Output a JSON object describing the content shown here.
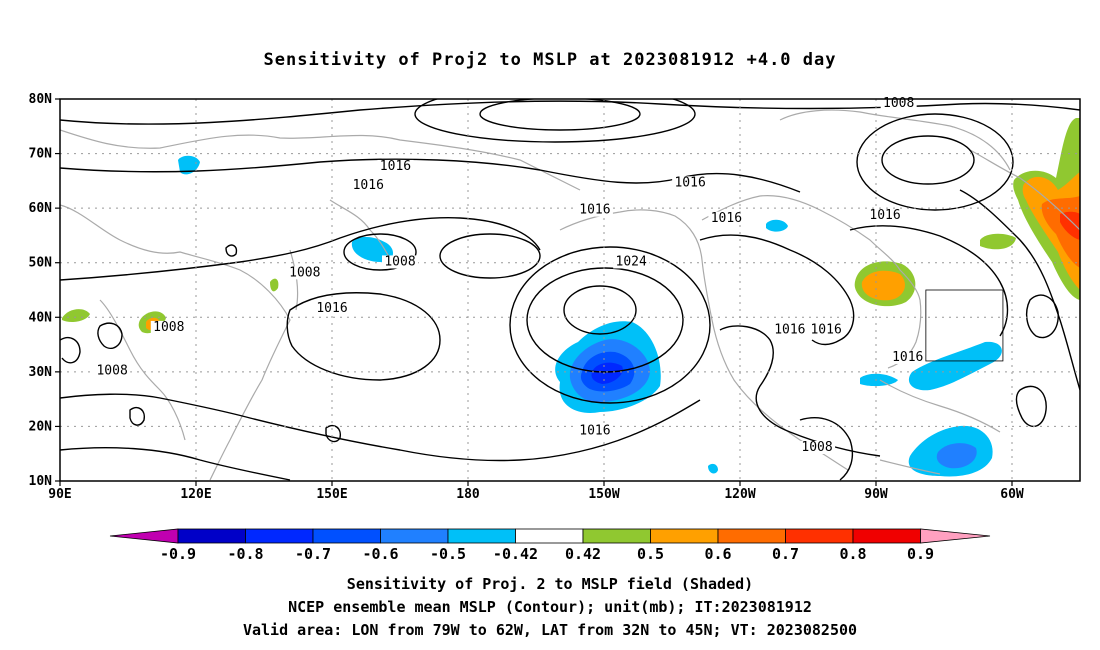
{
  "title": "Sensitivity of Proj2 to MSLP at 2023081912 +4.0 day",
  "map": {
    "lon_ticks": [
      "90E",
      "120E",
      "150E",
      "180",
      "150W",
      "120W",
      "90W",
      "60W"
    ],
    "lat_ticks": [
      "80N",
      "70N",
      "60N",
      "50N",
      "40N",
      "30N",
      "20N",
      "10N"
    ]
  },
  "contour_labels": [
    {
      "text": "1016",
      "lon": 164,
      "lat": 67
    },
    {
      "text": "1016",
      "lon": 158,
      "lat": 63.5
    },
    {
      "text": "1016",
      "lon": -131,
      "lat": 64
    },
    {
      "text": "1016",
      "lon": -152,
      "lat": 59
    },
    {
      "text": "1016",
      "lon": -123,
      "lat": 57.5
    },
    {
      "text": "1008",
      "lon": -85,
      "lat": 78.5
    },
    {
      "text": "1016",
      "lon": -88,
      "lat": 58
    },
    {
      "text": "1008",
      "lon": 144,
      "lat": 47.5
    },
    {
      "text": "1008",
      "lon": 165,
      "lat": 49.5
    },
    {
      "text": "1024",
      "lon": -144,
      "lat": 49.5
    },
    {
      "text": "1016",
      "lon": 150,
      "lat": 41
    },
    {
      "text": "1008",
      "lon": 114,
      "lat": 37.5
    },
    {
      "text": "1008",
      "lon": 101.5,
      "lat": 29.5
    },
    {
      "text": "1016",
      "lon": -109,
      "lat": 37
    },
    {
      "text": "1016",
      "lon": -101,
      "lat": 37
    },
    {
      "text": "1016",
      "lon": -83,
      "lat": 32
    },
    {
      "text": "1016",
      "lon": -152,
      "lat": 18.5
    },
    {
      "text": "1008",
      "lon": -103,
      "lat": 15.5
    }
  ],
  "valid_box": {
    "lon_min": -79,
    "lon_max": -62,
    "lat_min": 32,
    "lat_max": 45
  },
  "colorbar": {
    "labels": [
      "-0.9",
      "-0.8",
      "-0.7",
      "-0.6",
      "-0.5",
      "-0.42",
      "0.42",
      "0.5",
      "0.6",
      "0.7",
      "0.8",
      "0.9"
    ],
    "colors": [
      "#c000b0",
      "#0000c8",
      "#0028ff",
      "#0050ff",
      "#2080ff",
      "#00c0f8",
      "#ffffff",
      "#90c830",
      "#ffa000",
      "#ff6c00",
      "#ff3000",
      "#f00000",
      "#ffa0c0"
    ]
  },
  "footer": {
    "line1": "Sensitivity of Proj. 2 to MSLP field (Shaded)",
    "line2": "NCEP ensemble mean MSLP (Contour); unit(mb); IT:2023081912",
    "line3": "Valid area: LON from 79W to 62W, LAT from 32N to 45N; VT: 2023082500"
  }
}
